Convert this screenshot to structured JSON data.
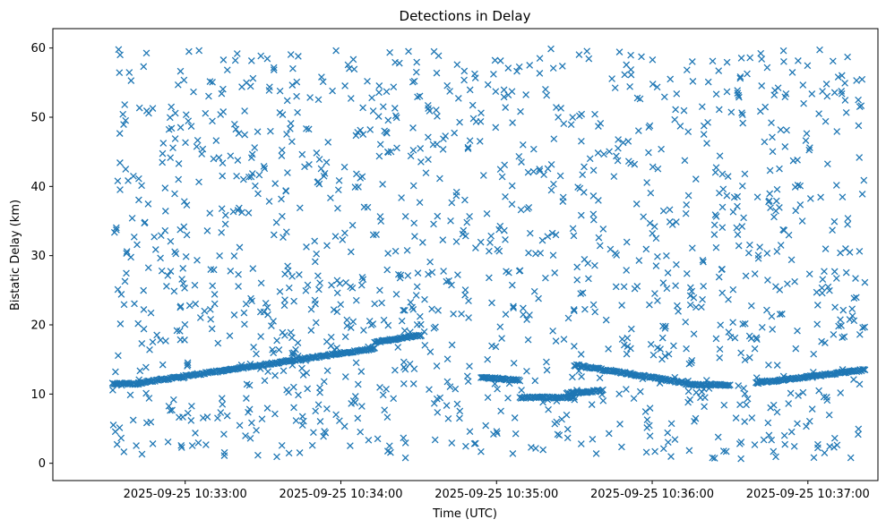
{
  "chart_data": {
    "type": "scatter",
    "title": "Detections in Delay",
    "xlabel": "Time (UTC)",
    "ylabel": "Bistatic Delay (km)",
    "x_ticks": [
      "2025-09-25 10:33:00",
      "2025-09-25 10:34:00",
      "2025-09-25 10:35:00",
      "2025-09-25 10:36:00",
      "2025-09-25 10:37:00"
    ],
    "y_ticks": [
      "0",
      "10",
      "20",
      "30",
      "40",
      "50",
      "60"
    ],
    "xlim": [
      "2025-09-25 10:32:09",
      "2025-09-25 10:37:27"
    ],
    "ylim": [
      -2.5,
      62.8
    ],
    "grid": false,
    "legend": "none",
    "marker": "x",
    "color": "#1f77b4",
    "track_segments": [
      {
        "start": "2025-09-25 10:32:32",
        "end": "2025-09-25 10:32:42",
        "delay_start": 11.5,
        "delay_end": 11.5
      },
      {
        "start": "2025-09-25 10:32:42",
        "end": "2025-09-25 10:34:13",
        "delay_start": 11.6,
        "delay_end": 16.6
      },
      {
        "start": "2025-09-25 10:34:13",
        "end": "2025-09-25 10:34:31",
        "delay_start": 17.5,
        "delay_end": 18.5
      },
      {
        "start": "2025-09-25 10:34:54",
        "end": "2025-09-25 10:35:09",
        "delay_start": 12.4,
        "delay_end": 12.0
      },
      {
        "start": "2025-09-25 10:35:09",
        "end": "2025-09-25 10:35:30",
        "delay_start": 9.5,
        "delay_end": 9.5
      },
      {
        "start": "2025-09-25 10:35:30",
        "end": "2025-09-25 10:36:13",
        "delay_start": 14.2,
        "delay_end": 11.6
      },
      {
        "start": "2025-09-25 10:35:27",
        "end": "2025-09-25 10:35:41",
        "delay_start": 10.1,
        "delay_end": 10.5
      },
      {
        "start": "2025-09-25 10:36:13",
        "end": "2025-09-25 10:36:30",
        "delay_start": 11.4,
        "delay_end": 11.3
      },
      {
        "start": "2025-09-25 10:36:40",
        "end": "2025-09-25 10:37:22",
        "delay_start": 11.6,
        "delay_end": 13.5
      }
    ],
    "clutter": {
      "count": 1350,
      "time_range": [
        "2025-09-25 10:32:32",
        "2025-09-25 10:37:22"
      ],
      "delay_range": [
        0.5,
        60
      ]
    }
  }
}
